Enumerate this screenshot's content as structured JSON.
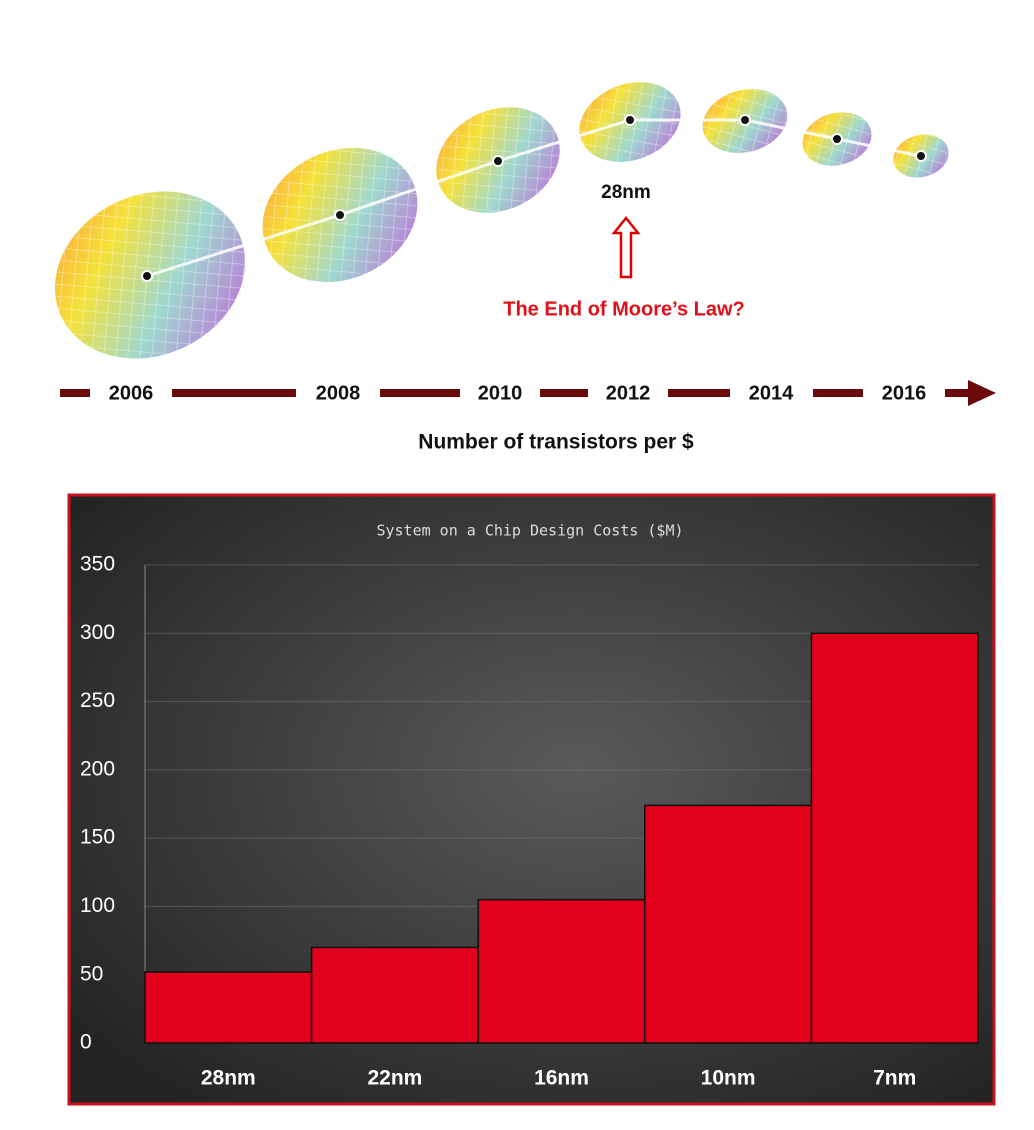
{
  "infographic": {
    "years": [
      "2006",
      "2008",
      "2010",
      "2012",
      "2014",
      "2016"
    ],
    "node_label": "28nm",
    "annotation": "The End of Moore’s Law?",
    "caption": "Number of transistors per $"
  },
  "chart_data": {
    "type": "bar",
    "title": "System on a Chip Design Costs ($M)",
    "categories": [
      "28nm",
      "22nm",
      "16nm",
      "10nm",
      "7nm"
    ],
    "values": [
      52,
      70,
      105,
      174,
      300
    ],
    "color": "#e0001b",
    "ylim": [
      0,
      350
    ],
    "yticks": [
      0,
      50,
      100,
      150,
      200,
      250,
      300,
      350
    ],
    "grid": true
  }
}
